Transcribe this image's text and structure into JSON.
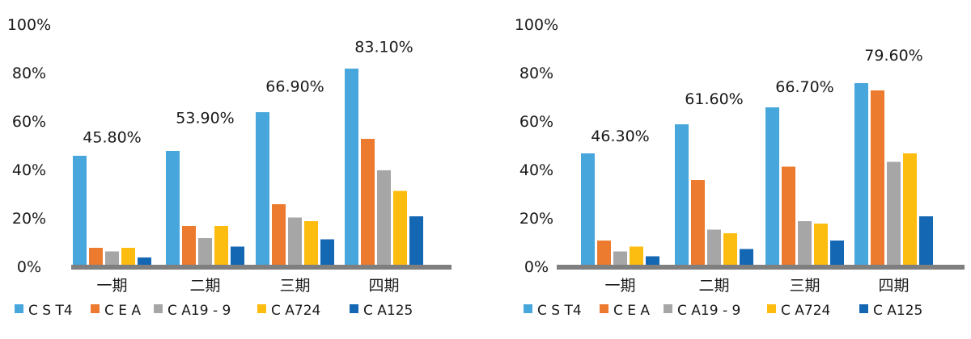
{
  "colors": {
    "CST4": "#47a6dc",
    "CEA": "#ed7b2f",
    "CA19-9": "#a6a6a6",
    "CA724": "#fdbc10",
    "CA125": "#1467b3",
    "baseline": "#7f7f7f"
  },
  "chart_data": [
    {
      "type": "bar",
      "categories": [
        "一期",
        "二期",
        "三期",
        "四期"
      ],
      "yticks": [
        "0%",
        "20%",
        "40%",
        "60%",
        "80%",
        "100%"
      ],
      "ylim": [
        0,
        100
      ],
      "legend_position": "bottom",
      "series": [
        {
          "name": "C S T4",
          "key": "CST4",
          "values": [
            45,
            47,
            63,
            81
          ]
        },
        {
          "name": "C E A",
          "key": "CEA",
          "values": [
            7,
            16,
            25,
            52
          ]
        },
        {
          "name": "C A19 - 9",
          "key": "CA19-9",
          "values": [
            5.5,
            11,
            19.5,
            39
          ]
        },
        {
          "name": "C A724",
          "key": "CA724",
          "values": [
            7,
            16,
            18,
            30.5
          ]
        },
        {
          "name": "C A125",
          "key": "CA125",
          "values": [
            3,
            7.5,
            10.5,
            20
          ]
        }
      ],
      "annotations": [
        "45.80%",
        "53.90%",
        "66.90%",
        "83.10%"
      ],
      "annotation_values": [
        45.8,
        53.9,
        66.9,
        83.1
      ]
    },
    {
      "type": "bar",
      "categories": [
        "一期",
        "二期",
        "三期",
        "四期"
      ],
      "yticks": [
        "0%",
        "20%",
        "40%",
        "60%",
        "80%",
        "100%"
      ],
      "ylim": [
        0,
        100
      ],
      "legend_position": "bottom",
      "series": [
        {
          "name": "C S T4",
          "key": "CST4",
          "values": [
            46,
            58,
            65,
            75
          ]
        },
        {
          "name": "C E A",
          "key": "CEA",
          "values": [
            10,
            35,
            40.5,
            72
          ]
        },
        {
          "name": "C A19 - 9",
          "key": "CA19-9",
          "values": [
            5.5,
            14.5,
            18,
            42.5
          ]
        },
        {
          "name": "C A724",
          "key": "CA724",
          "values": [
            7.5,
            13,
            17,
            46
          ]
        },
        {
          "name": "C A125",
          "key": "CA125",
          "values": [
            3.5,
            6.5,
            10,
            20
          ]
        }
      ],
      "annotations": [
        "46.30%",
        "61.60%",
        "66.70%",
        "79.60%"
      ],
      "annotation_values": [
        46.3,
        61.6,
        66.7,
        79.6
      ]
    }
  ]
}
